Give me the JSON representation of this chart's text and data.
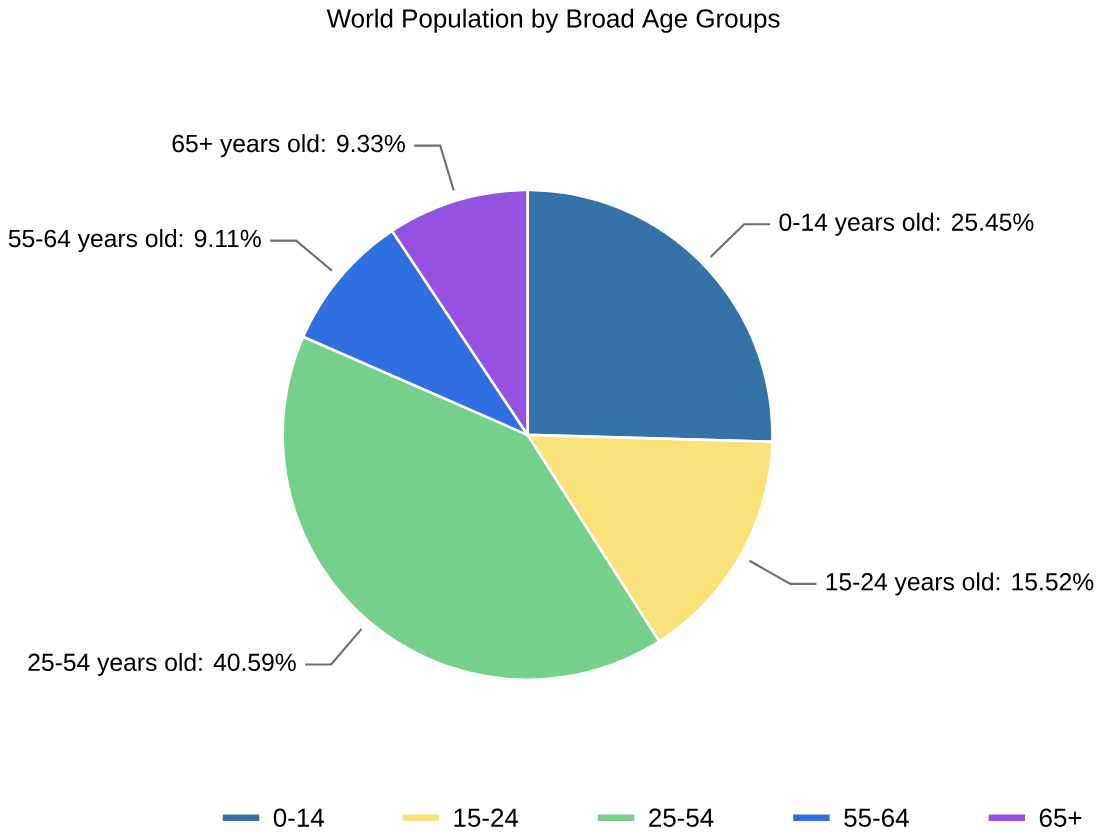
{
  "chart_data": {
    "type": "pie",
    "title": "World Population by Broad Age Groups",
    "categories": [
      "0-14",
      "15-24",
      "25-54",
      "55-64",
      "65+"
    ],
    "values": [
      25.45,
      15.52,
      40.59,
      9.11,
      9.33
    ],
    "colors": [
      "#3572a8",
      "#fae27a",
      "#74d08a",
      "#2f6fe0",
      "#9552e0"
    ],
    "value_labels": [
      "0-14 years old: 25.45%",
      "15-24 years old: 15.52%",
      "25-54 years old: 40.59%",
      "55-64 years old: 9.11%",
      "65+ years old: 9.33%"
    ],
    "legend": "bottom"
  }
}
